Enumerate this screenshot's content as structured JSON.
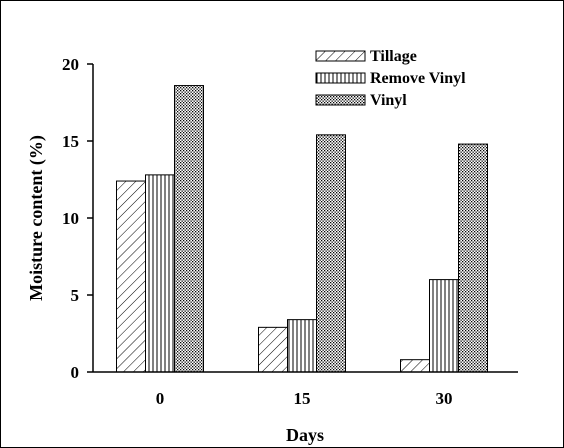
{
  "chart_data": {
    "type": "bar",
    "title": "",
    "xlabel": "Days",
    "ylabel": "Moisture content (%)",
    "categories": [
      "0",
      "15",
      "30"
    ],
    "ylim": [
      0,
      20
    ],
    "yticks": [
      "0",
      "5",
      "10",
      "15",
      "20"
    ],
    "grid": false,
    "legend_position": "top-right",
    "series": [
      {
        "name": "Tillage",
        "values": [
          12.4,
          2.9,
          0.8
        ],
        "pattern": "diagonal-hatch"
      },
      {
        "name": "Remove Vinyl",
        "values": [
          12.8,
          3.4,
          6.0
        ],
        "pattern": "vertical-lines"
      },
      {
        "name": "Vinyl",
        "values": [
          18.6,
          15.4,
          14.8
        ],
        "pattern": "dense-dots"
      }
    ]
  }
}
